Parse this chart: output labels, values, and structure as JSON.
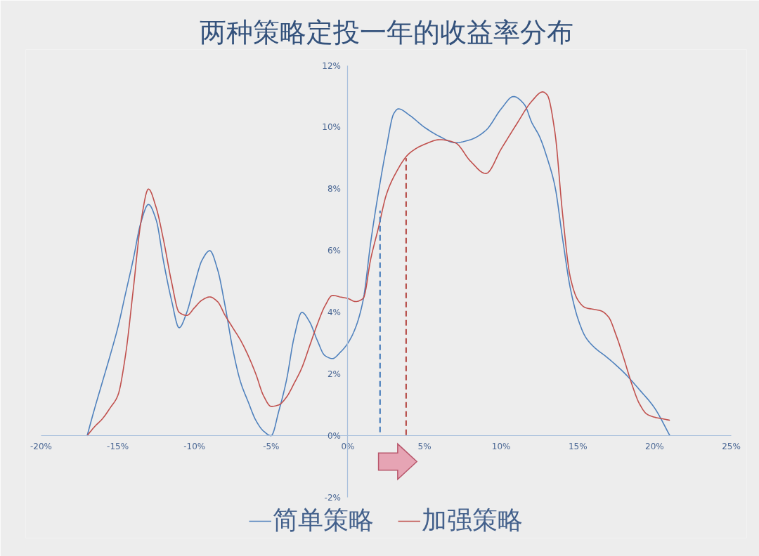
{
  "chart_data": {
    "type": "line",
    "title": "两种策略定投一年的收益率分布",
    "xlim": [
      -20,
      25
    ],
    "xticks": [
      {
        "value": -20,
        "label": "-20%"
      },
      {
        "value": -15,
        "label": "-15%"
      },
      {
        "value": -10,
        "label": "-10%"
      },
      {
        "value": -5,
        "label": "-5%"
      },
      {
        "value": 0,
        "label": "0%"
      },
      {
        "value": 5,
        "label": "5%"
      },
      {
        "value": 10,
        "label": "10%"
      },
      {
        "value": 15,
        "label": "15%"
      },
      {
        "value": 20,
        "label": "20%"
      },
      {
        "value": 25,
        "label": "25%"
      }
    ],
    "ylim": [
      -2,
      12
    ],
    "yticks": [
      {
        "value": -2,
        "label": "-2%"
      },
      {
        "value": 0,
        "label": "0%"
      },
      {
        "value": 2,
        "label": "2%"
      },
      {
        "value": 4,
        "label": "4%"
      },
      {
        "value": 6,
        "label": "6%"
      },
      {
        "value": 8,
        "label": "8%"
      },
      {
        "value": 10,
        "label": "10%"
      },
      {
        "value": 12,
        "label": "12%"
      }
    ],
    "grid": false,
    "legend": "bottom",
    "line_style": "solid",
    "series": [
      {
        "name": "简单策略",
        "color": "#4f81bd",
        "x": [
          -17,
          -16.5,
          -16,
          -15.5,
          -15,
          -14.5,
          -14,
          -13.5,
          -13,
          -12.5,
          -12,
          -11.5,
          -11,
          -10.5,
          -10,
          -9.5,
          -9,
          -8.5,
          -8,
          -7.5,
          -7,
          -6.5,
          -6,
          -5.5,
          -5,
          -4.5,
          -4,
          -3.5,
          -3,
          -2.5,
          -2,
          -1.5,
          -1,
          -0.5,
          0,
          0.5,
          1,
          1.5,
          2,
          2.5,
          3,
          3.3,
          4,
          5,
          6,
          7,
          8,
          9,
          10,
          10.8,
          11.5,
          12,
          12.5,
          13,
          13.5,
          14,
          14.5,
          15,
          15.5,
          16,
          17,
          18,
          19,
          20,
          21
        ],
        "values": [
          0,
          0.9,
          1.75,
          2.6,
          3.5,
          4.6,
          5.7,
          6.9,
          7.5,
          7.0,
          5.6,
          4.4,
          3.5,
          4.0,
          4.9,
          5.7,
          6.0,
          5.4,
          4.2,
          2.8,
          1.75,
          1.1,
          0.5,
          0.15,
          0,
          0.8,
          1.8,
          3.2,
          4.0,
          3.7,
          3.1,
          2.6,
          2.5,
          2.7,
          3.0,
          3.5,
          4.4,
          6.3,
          7.9,
          9.3,
          10.45,
          10.6,
          10.4,
          10.0,
          9.7,
          9.5,
          9.6,
          9.9,
          10.6,
          11.0,
          10.75,
          10.15,
          9.7,
          9.0,
          8.1,
          6.4,
          4.8,
          3.8,
          3.2,
          2.9,
          2.5,
          2.05,
          1.5,
          0.9,
          0
        ]
      },
      {
        "name": "加强策略",
        "color": "#c0504d",
        "x": [
          -17,
          -16.5,
          -16,
          -15.5,
          -15,
          -14.5,
          -14,
          -13.5,
          -13,
          -12.5,
          -12,
          -11.5,
          -11,
          -10.5,
          -10,
          -9.5,
          -9,
          -8.5,
          -8,
          -7.5,
          -7,
          -6.5,
          -6,
          -5.5,
          -5,
          -4.5,
          -4,
          -3.5,
          -3,
          -2.5,
          -2,
          -1.5,
          -1,
          -0.5,
          0,
          0.5,
          1,
          1.5,
          2,
          2.5,
          3,
          4,
          5,
          6,
          7,
          8,
          9,
          10,
          11,
          12,
          12.7,
          13,
          13.5,
          14,
          14.5,
          15,
          15.5,
          16,
          16.5,
          17,
          17.5,
          18,
          18.5,
          19,
          19.5,
          20,
          20.5,
          21
        ],
        "values": [
          0,
          0.3,
          0.55,
          0.9,
          1.3,
          2.6,
          4.7,
          6.9,
          8.0,
          7.4,
          6.3,
          5.0,
          4.0,
          3.9,
          4.15,
          4.4,
          4.5,
          4.35,
          3.9,
          3.5,
          3.1,
          2.6,
          2.0,
          1.3,
          0.95,
          1.0,
          1.25,
          1.7,
          2.2,
          2.9,
          3.6,
          4.2,
          4.55,
          4.5,
          4.45,
          4.35,
          4.45,
          5.75,
          6.75,
          7.8,
          8.4,
          9.15,
          9.45,
          9.6,
          9.5,
          8.9,
          8.5,
          9.3,
          10.1,
          10.85,
          11.15,
          11.05,
          9.85,
          7.2,
          5.15,
          4.4,
          4.15,
          4.1,
          4.05,
          3.85,
          3.25,
          2.5,
          1.7,
          1.05,
          0.7,
          0.6,
          0.55,
          0.5
        ]
      },
      {
        "type": "line",
        "color": "#4a7ebb",
        "line_style": "dashed",
        "x": [
          2.1,
          2.1
        ],
        "values": [
          0,
          7.3
        ]
      },
      {
        "type": "line",
        "color": "#b8514d",
        "line_style": "dashed",
        "x": [
          3.8,
          3.8
        ],
        "values": [
          0,
          9.0
        ]
      }
    ]
  }
}
